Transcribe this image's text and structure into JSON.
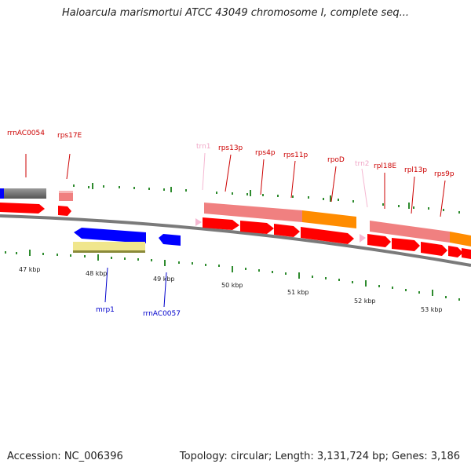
{
  "title": "Haloarcula marismortui ATCC 43049 chromosome I, complete seq...",
  "footer": {
    "accession": "Accession: NC_006396",
    "summary": "Topology: circular; Length: 3,131,724 bp; Genes: 3,186"
  },
  "colors": {
    "gene_red": "#ff0000",
    "rna_pink": "#f5b8d2",
    "label_red": "#cc0000",
    "label_blue": "#0000cc",
    "blue": "#0000ff",
    "orange": "#ff8c00",
    "salmon": "#f08080",
    "yellow": "#f0e68c",
    "tick_green": "#228b22"
  },
  "ruler": {
    "ticks": [
      "47 kbp",
      "48 kbp",
      "49 kbp",
      "50 kbp",
      "51 kbp",
      "52 kbp",
      "53 kbp"
    ]
  },
  "labels": {
    "rrnAC0054": "rrnAC0054",
    "rps17E": "rps17E",
    "trn1": "trn1",
    "rps13p": "rps13p",
    "rps4p": "rps4p",
    "rps11p": "rps11p",
    "rpoD": "rpoD",
    "trn2": "trn2",
    "rpl18E": "rpl18E",
    "rpl13p": "rpl13p",
    "rps9p": "rps9p",
    "mrp1": "mrp1",
    "rrnAC0057": "rrnAC0057"
  }
}
